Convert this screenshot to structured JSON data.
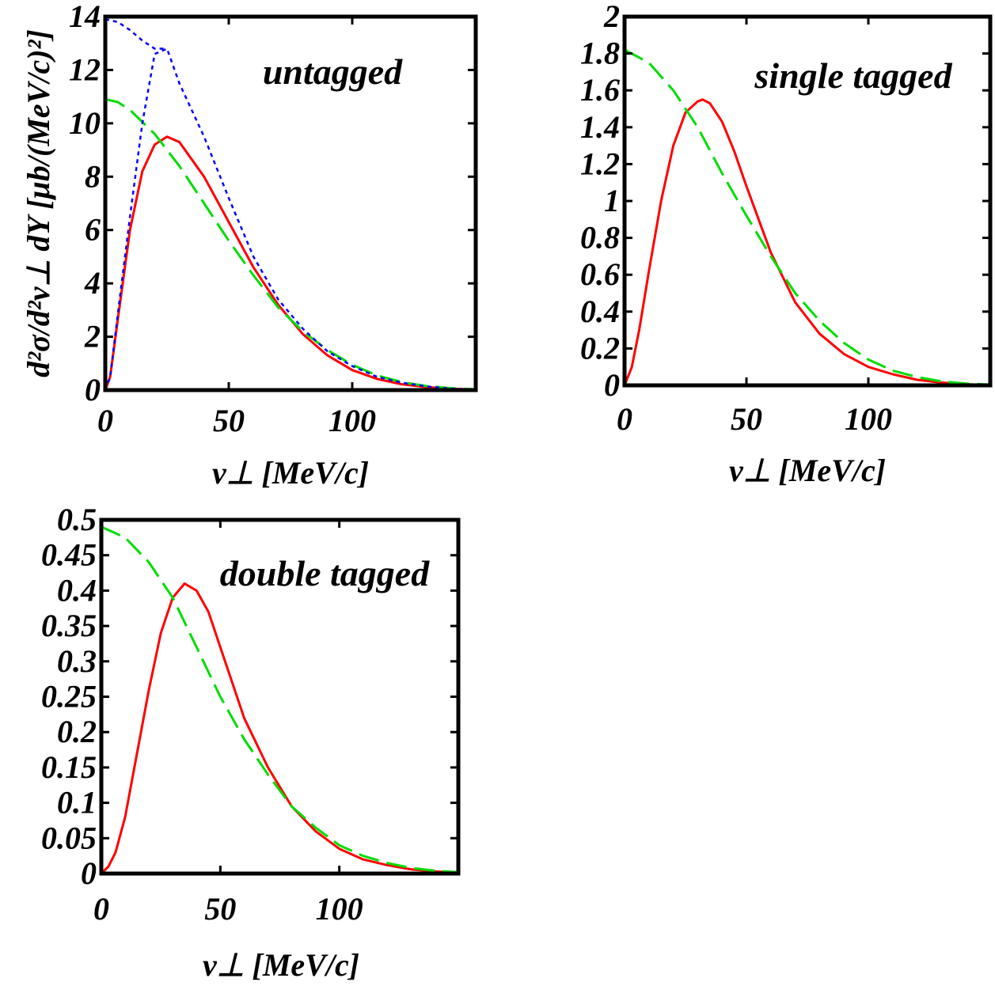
{
  "figure": {
    "ylabel": "d²σ/d²v⊥ dY [μb/(MeV/c)²]",
    "xlabel": "v⊥ [MeV/c]"
  },
  "colors": {
    "red": "#ff0000",
    "green": "#00dd00",
    "blue": "#0000ff",
    "frame": "#000000"
  },
  "chart_data": [
    {
      "type": "line",
      "label": "untagged",
      "xlabel": "v⊥ [MeV/c]",
      "ylabel": "d²σ/d²v⊥ dY [μb/(MeV/c)²]",
      "xlim": [
        0,
        150
      ],
      "ylim": [
        0,
        14
      ],
      "xticks": [
        0,
        50,
        100
      ],
      "yticks": [
        0,
        2,
        4,
        6,
        8,
        10,
        12,
        14
      ],
      "ytick_labels": [
        "0",
        "2",
        "4",
        "6",
        "8",
        "10",
        "12",
        "14"
      ],
      "series": [
        {
          "color": "red",
          "style": "solid",
          "x": [
            0,
            2,
            5,
            10,
            15,
            20,
            25,
            30,
            40,
            50,
            60,
            70,
            80,
            90,
            100,
            110,
            120,
            130,
            140,
            150
          ],
          "y": [
            0,
            0.5,
            2.6,
            6.0,
            8.2,
            9.2,
            9.5,
            9.3,
            8.0,
            6.3,
            4.6,
            3.2,
            2.1,
            1.3,
            0.75,
            0.42,
            0.22,
            0.11,
            0.05,
            0.02
          ]
        },
        {
          "color": "green",
          "style": "dashed",
          "x": [
            0,
            5,
            10,
            20,
            30,
            40,
            50,
            60,
            70,
            80,
            90,
            100,
            110,
            120,
            130,
            140,
            150
          ],
          "y": [
            10.9,
            10.8,
            10.5,
            9.6,
            8.4,
            7.0,
            5.6,
            4.3,
            3.1,
            2.2,
            1.5,
            0.95,
            0.55,
            0.3,
            0.15,
            0.07,
            0.03
          ]
        },
        {
          "color": "blue",
          "style": "dotted",
          "x": [
            0,
            2,
            5,
            10,
            15,
            20,
            25,
            30,
            40,
            50,
            60,
            70,
            80,
            90,
            100,
            110,
            120,
            130,
            140,
            150
          ],
          "y": [
            0,
            0.5,
            2.8,
            6.5,
            10.0,
            12.6,
            12.8,
            11.5,
            9.5,
            7.2,
            5.0,
            3.4,
            2.3,
            1.45,
            0.9,
            0.5,
            0.28,
            0.14,
            0.06,
            0.02
          ]
        },
        {
          "color": "blue",
          "style": "dotted",
          "x": [
            0,
            5,
            10,
            15,
            20,
            25
          ],
          "y": [
            13.9,
            13.8,
            13.5,
            13.1,
            12.8,
            12.8
          ]
        }
      ]
    },
    {
      "type": "line",
      "label": "single tagged",
      "xlabel": "v⊥ [MeV/c]",
      "xlim": [
        0,
        150
      ],
      "ylim": [
        0,
        2
      ],
      "xticks": [
        0,
        50,
        100
      ],
      "yticks": [
        0,
        0.2,
        0.4,
        0.6,
        0.8,
        1,
        1.2,
        1.4,
        1.6,
        1.8,
        2
      ],
      "ytick_labels": [
        "0",
        "0.2",
        "0.4",
        "0.6",
        "0.8",
        "1",
        "1.2",
        "1.4",
        "1.6",
        "1.8",
        "2"
      ],
      "series": [
        {
          "color": "red",
          "style": "solid",
          "x": [
            0,
            3,
            6,
            10,
            15,
            20,
            25,
            30,
            32,
            35,
            40,
            45,
            50,
            55,
            60,
            70,
            80,
            90,
            100,
            110,
            120,
            130,
            140,
            150
          ],
          "y": [
            0,
            0.1,
            0.3,
            0.62,
            1.0,
            1.3,
            1.48,
            1.54,
            1.55,
            1.53,
            1.43,
            1.27,
            1.08,
            0.9,
            0.72,
            0.45,
            0.28,
            0.17,
            0.1,
            0.06,
            0.03,
            0.015,
            0.006,
            0.002
          ]
        },
        {
          "color": "green",
          "style": "dashed",
          "x": [
            0,
            10,
            20,
            30,
            40,
            50,
            60,
            70,
            80,
            90,
            100,
            110,
            120,
            130,
            140,
            150
          ],
          "y": [
            1.82,
            1.75,
            1.6,
            1.4,
            1.15,
            0.92,
            0.7,
            0.5,
            0.35,
            0.23,
            0.14,
            0.08,
            0.045,
            0.022,
            0.01,
            0.004
          ]
        }
      ]
    },
    {
      "type": "line",
      "label": "double tagged",
      "xlabel": "v⊥ [MeV/c]",
      "xlim": [
        0,
        150
      ],
      "ylim": [
        0,
        0.5
      ],
      "xticks": [
        0,
        50,
        100
      ],
      "yticks": [
        0,
        0.05,
        0.1,
        0.15,
        0.2,
        0.25,
        0.3,
        0.35,
        0.4,
        0.45,
        0.5
      ],
      "ytick_labels": [
        "0",
        "0.05",
        "0.1",
        "0.15",
        "0.2",
        "0.25",
        "0.3",
        "0.35",
        "0.4",
        "0.45",
        "0.5"
      ],
      "series": [
        {
          "color": "red",
          "style": "solid",
          "x": [
            0,
            3,
            6,
            10,
            15,
            20,
            25,
            30,
            35,
            40,
            45,
            50,
            55,
            60,
            70,
            80,
            90,
            100,
            110,
            120,
            130,
            140,
            150
          ],
          "y": [
            0,
            0.01,
            0.03,
            0.08,
            0.17,
            0.26,
            0.34,
            0.39,
            0.41,
            0.4,
            0.37,
            0.32,
            0.27,
            0.22,
            0.15,
            0.095,
            0.06,
            0.035,
            0.02,
            0.012,
            0.006,
            0.003,
            0.001
          ]
        },
        {
          "color": "green",
          "style": "dashed",
          "x": [
            0,
            10,
            20,
            30,
            40,
            50,
            60,
            70,
            80,
            90,
            100,
            110,
            120,
            130,
            140,
            150
          ],
          "y": [
            0.49,
            0.475,
            0.44,
            0.39,
            0.32,
            0.25,
            0.19,
            0.14,
            0.095,
            0.065,
            0.04,
            0.025,
            0.015,
            0.008,
            0.004,
            0.002
          ]
        }
      ]
    }
  ]
}
